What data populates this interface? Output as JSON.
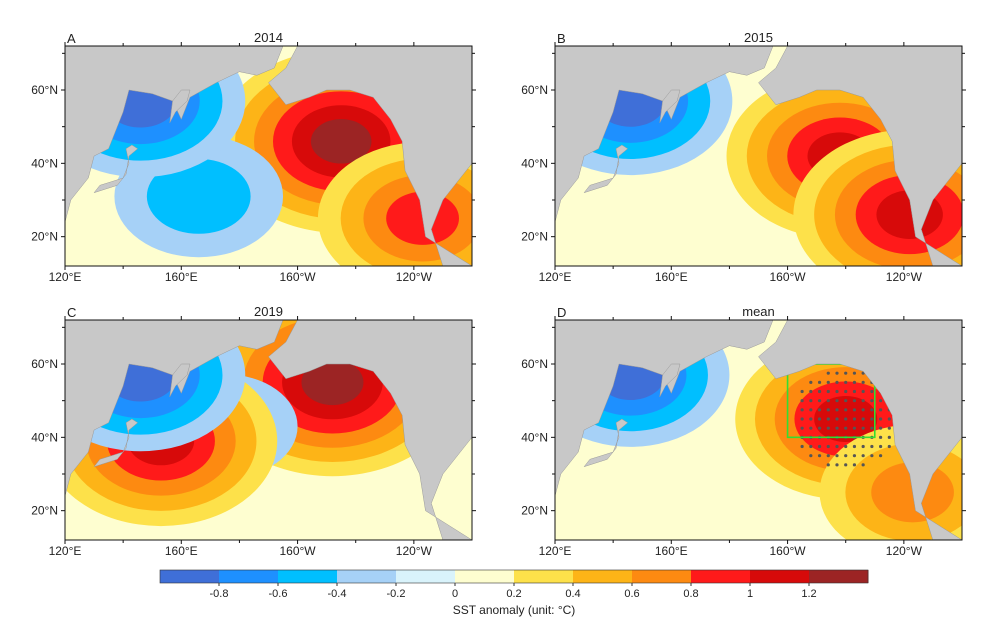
{
  "chart_data": {
    "type": "heatmap",
    "variable_label": "SST anomaly (unit: °C)",
    "colorbar": {
      "boundaries": [
        -1.0,
        -0.8,
        -0.6,
        -0.4,
        -0.2,
        0,
        0.2,
        0.4,
        0.6,
        0.8,
        1.0,
        1.2,
        1.4
      ],
      "tick_labels": [
        "-0.8",
        "-0.6",
        "-0.4",
        "-0.2",
        "0",
        "0.2",
        "0.4",
        "0.6",
        "0.8",
        "1",
        "1.2"
      ],
      "colors": [
        "#3f6fd8",
        "#1e90ff",
        "#00bfff",
        "#a6d1f7",
        "#d9f3fb",
        "#fefed0",
        "#fde14a",
        "#fdb417",
        "#fd8a11",
        "#ff1a1a",
        "#d70a0a",
        "#9c2424"
      ]
    },
    "land_color": "#c8c8c8",
    "axes": {
      "x_ticks": [
        "120°E",
        "160°E",
        "160°W",
        "120°W"
      ],
      "y_ticks": [
        "60°N",
        "40°N",
        "20°N"
      ],
      "lon_range": [
        120,
        260
      ],
      "lat_range": [
        12,
        72
      ]
    },
    "panels": [
      {
        "letter": "A",
        "title": "2014",
        "features": [
          {
            "lon": 215,
            "lat": 46,
            "value": 1.25,
            "note": "warm blob NE Pacific"
          },
          {
            "lon": 166,
            "lat": 31,
            "value": -0.55,
            "note": "cold anomaly subtropics"
          },
          {
            "lon": 243,
            "lat": 25,
            "value": 0.9,
            "note": "warm Baja coast"
          },
          {
            "lon": 146,
            "lat": 57,
            "value": -0.9,
            "note": "cold Sea of Okhotsk"
          }
        ]
      },
      {
        "letter": "B",
        "title": "2015",
        "features": [
          {
            "lon": 218,
            "lat": 42,
            "value": 1.05,
            "note": "warm center NE Pacific"
          },
          {
            "lon": 242,
            "lat": 26,
            "value": 1.1,
            "note": "warm Baja coast"
          },
          {
            "lon": 146,
            "lat": 57,
            "value": -0.85,
            "note": "cold Sea of Okhotsk"
          }
        ]
      },
      {
        "letter": "C",
        "title": "2019",
        "features": [
          {
            "lon": 212,
            "lat": 55,
            "value": 1.3,
            "note": "warm Gulf of Alaska"
          },
          {
            "lon": 175,
            "lat": 43,
            "value": -0.35,
            "note": "cold mid-latitude"
          },
          {
            "lon": 153,
            "lat": 39,
            "value": 1.1,
            "note": "warm off Japan"
          },
          {
            "lon": 146,
            "lat": 57,
            "value": -0.9,
            "note": "cold Sea of Okhotsk"
          }
        ]
      },
      {
        "letter": "D",
        "title": "mean",
        "features": [
          {
            "lon": 220,
            "lat": 45,
            "value": 1.0,
            "note": "warm center, stippled"
          },
          {
            "lon": 243,
            "lat": 25,
            "value": 0.7,
            "note": "warm Baja coast"
          },
          {
            "lon": 146,
            "lat": 57,
            "value": -0.8,
            "note": "cold Sea of Okhotsk"
          }
        ],
        "box": {
          "lon": [
            200,
            230
          ],
          "lat": [
            40,
            60
          ],
          "color": "#33dd33"
        }
      }
    ]
  }
}
